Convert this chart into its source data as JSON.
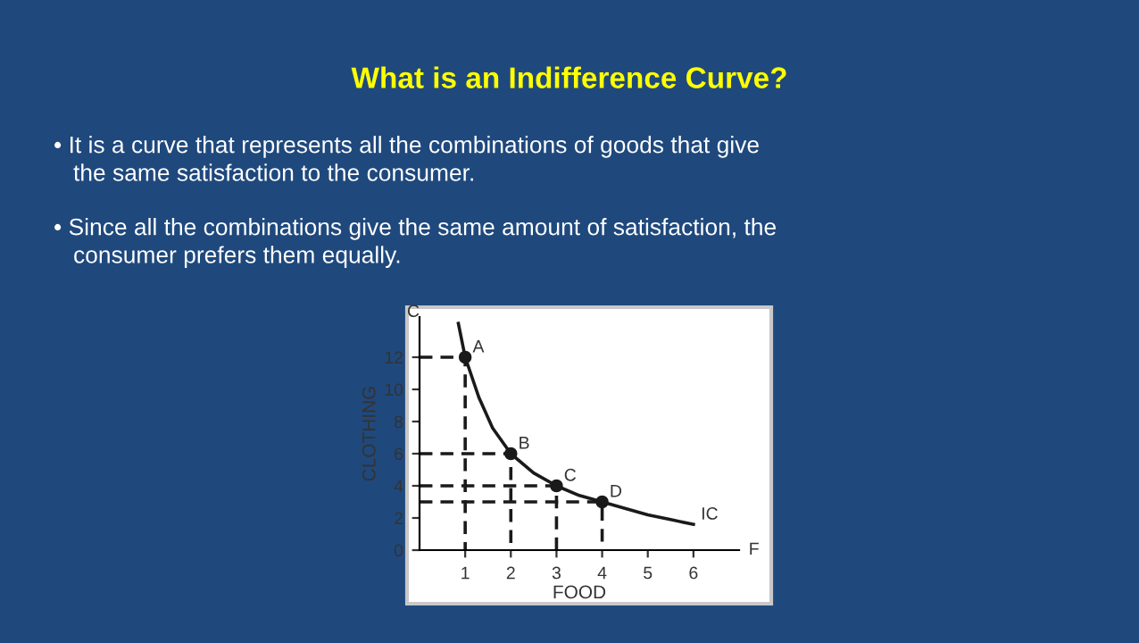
{
  "chart_data": {
    "type": "line",
    "title": "What is an Indifference Curve?",
    "xlabel": "FOOD",
    "ylabel": "CLOTHING",
    "xlim": [
      0,
      7
    ],
    "xticks": [
      1,
      2,
      3,
      4,
      5,
      6
    ],
    "ylim": [
      0,
      14.5
    ],
    "yticks": [
      0,
      2,
      4,
      6,
      8,
      10,
      12
    ],
    "grid": false,
    "legend": false,
    "series": [
      {
        "color": "#1a1a1a",
        "line_style": "solid",
        "x": [
          0.85,
          1,
          1.3,
          1.6,
          2,
          2.5,
          3,
          3.5,
          4,
          4.5,
          5,
          5.5,
          6
        ],
        "values": [
          14.1,
          12,
          9.5,
          7.6,
          6,
          4.8,
          4,
          3.4,
          3,
          2.6,
          2.2,
          1.9,
          1.6
        ]
      },
      {
        "type": "scatter",
        "color": "#1a1a1a",
        "marker": "circle",
        "x": [
          1,
          2,
          3,
          4
        ],
        "values": [
          12,
          6,
          4,
          3
        ]
      },
      {
        "type": "line",
        "color": "#1a1a1a",
        "line_style": "dashed",
        "x": [
          0,
          1,
          1
        ],
        "values": [
          12,
          12,
          0
        ]
      },
      {
        "type": "line",
        "color": "#1a1a1a",
        "line_style": "dashed",
        "x": [
          0,
          2,
          2
        ],
        "values": [
          6,
          6,
          0
        ]
      },
      {
        "type": "line",
        "color": "#1a1a1a",
        "line_style": "dashed",
        "x": [
          0,
          3,
          3
        ],
        "values": [
          4,
          4,
          0
        ]
      },
      {
        "type": "line",
        "color": "#1a1a1a",
        "line_style": "dashed",
        "x": [
          0,
          4,
          4
        ],
        "values": [
          3,
          3,
          0
        ]
      }
    ],
    "annotations": [
      "• It is a curve that represents all the combinations of goods that give\n   the same satisfaction to the consumer.",
      "• Since all the combinations give the same amount of satisfaction, the\n   consumer prefers them equally.",
      "C",
      "F",
      {
        "text": "A",
        "x": 1,
        "y": 12
      },
      {
        "text": "B",
        "x": 2,
        "y": 6
      },
      {
        "text": "C",
        "x": 3,
        "y": 4
      },
      {
        "text": "D",
        "x": 4,
        "y": 3
      },
      {
        "text": "IC",
        "x": 6,
        "y": 1.6
      }
    ]
  }
}
